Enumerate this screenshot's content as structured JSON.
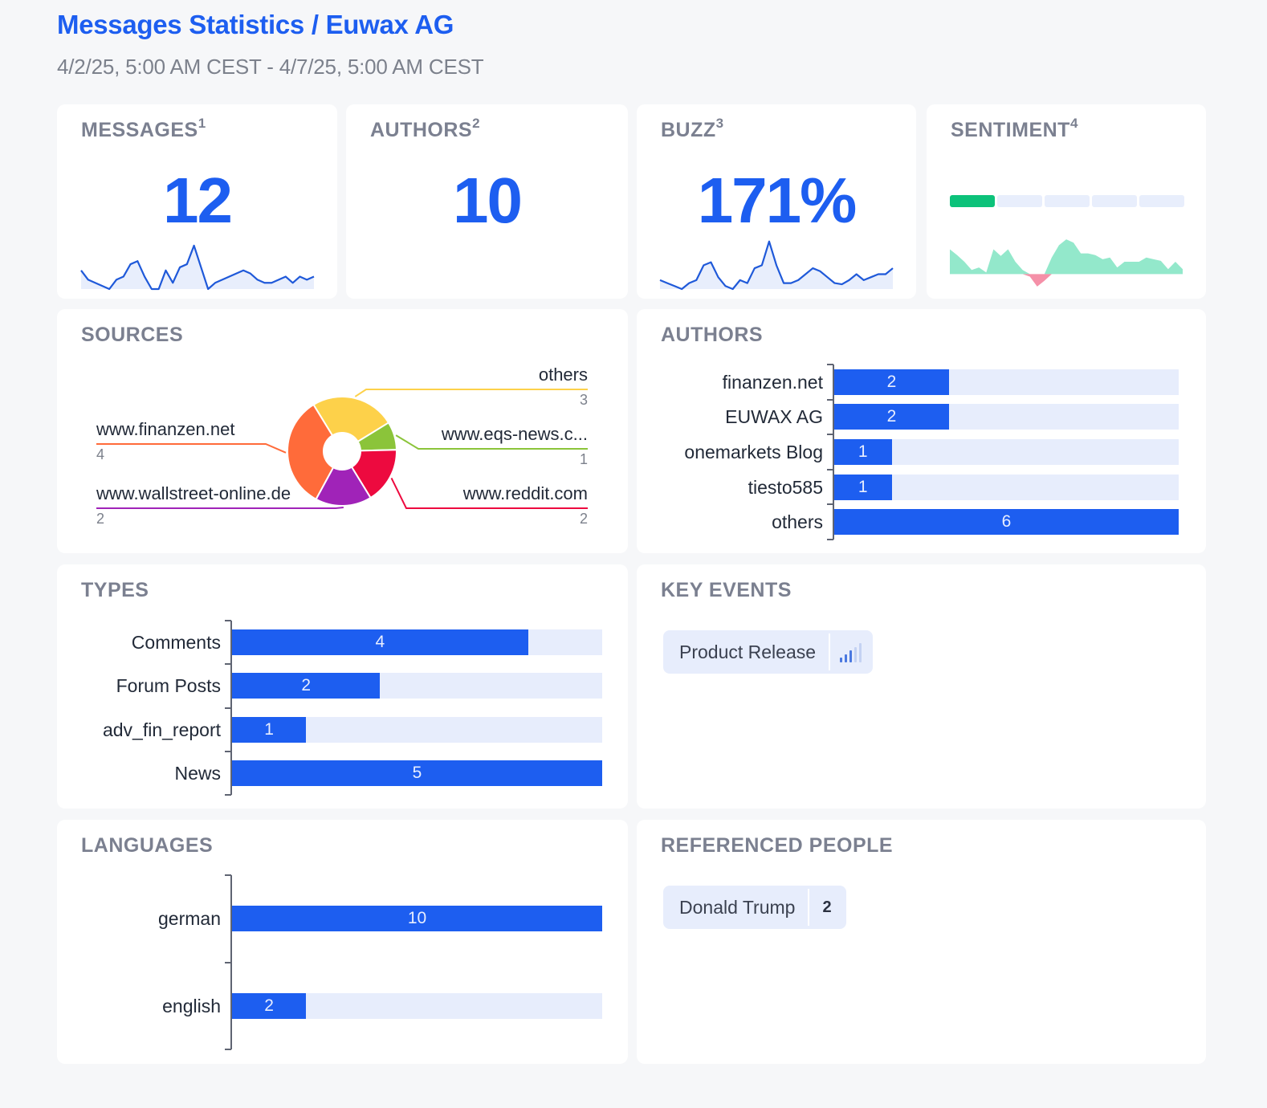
{
  "header": {
    "title": "Messages Statistics / Euwax AG",
    "date_range": "4/2/25, 5:00 AM CEST - 4/7/25, 5:00 AM CEST"
  },
  "kpis": {
    "messages": {
      "label": "MESSAGES",
      "footnote": "1",
      "value": "12"
    },
    "authors": {
      "label": "AUTHORS",
      "footnote": "2",
      "value": "10"
    },
    "buzz": {
      "label": "BUZZ",
      "footnote": "3",
      "value": "171%"
    },
    "sentiment": {
      "label": "SENTIMENT",
      "footnote": "4",
      "level": 1,
      "level_max": 5
    }
  },
  "colors": {
    "accent": "#1d5ef0",
    "track": "#e7edfc",
    "positive": "#0cc27a",
    "positive_area": "#93e8cb",
    "negative_area": "#f590a8"
  },
  "chart_data": [
    {
      "name": "messages-sparkline",
      "type": "area",
      "values": [
        3,
        1.5,
        1,
        0.5,
        0,
        1.5,
        2,
        4,
        4.5,
        2,
        0,
        0,
        3,
        1,
        3.5,
        4,
        7,
        3.5,
        0,
        1,
        1.5,
        2,
        2.5,
        3,
        2.5,
        1.5,
        1,
        1,
        1.5,
        2,
        1,
        2,
        1.5,
        2
      ],
      "ylim": [
        0,
        7.5
      ]
    },
    {
      "name": "buzz-sparkline",
      "type": "area",
      "values": [
        1.5,
        1,
        0.5,
        0,
        1,
        1.5,
        4,
        4.5,
        2,
        0.5,
        0,
        1.5,
        1,
        3.5,
        4,
        8,
        4,
        1,
        1,
        1.5,
        2.5,
        3.5,
        3,
        2,
        1,
        0.8,
        1.5,
        2.5,
        1.5,
        2,
        2.5,
        2.5,
        3.5
      ],
      "ylim": [
        0,
        8.5
      ]
    },
    {
      "name": "sentiment-sparkline",
      "type": "area",
      "values": [
        3,
        2.3,
        1.5,
        0.5,
        0.8,
        0.2,
        3,
        2.2,
        3,
        1.5,
        0.5,
        -0.3,
        -1.5,
        -0.8,
        2,
        3.5,
        4.2,
        3.8,
        2.5,
        2.5,
        2.3,
        1.8,
        2,
        0.8,
        1.5,
        1.5,
        1.5,
        2,
        1.8,
        1.6,
        0.6,
        1.5,
        0.6
      ],
      "ylim": [
        -1.8,
        4.5
      ]
    },
    {
      "name": "sources",
      "type": "pie",
      "title": "SOURCES",
      "slices": [
        {
          "label": "others",
          "value": 3,
          "color": "#fdd14a"
        },
        {
          "label": "www.eqs-news.c...",
          "value": 1,
          "color": "#8bc43a"
        },
        {
          "label": "www.reddit.com",
          "value": 2,
          "color": "#ed0a3f"
        },
        {
          "label": "www.wallstreet-online.de",
          "value": 2,
          "color": "#a023b8"
        },
        {
          "label": "www.finanzen.net",
          "value": 4,
          "color": "#ff6b3a"
        }
      ]
    },
    {
      "name": "authors",
      "type": "bar",
      "title": "AUTHORS",
      "categories": [
        "finanzen.net",
        "EUWAX AG",
        "onemarkets Blog",
        "tiesto585",
        "others"
      ],
      "values": [
        2,
        2,
        1,
        1,
        6
      ],
      "xlim": [
        0,
        6
      ]
    },
    {
      "name": "types",
      "type": "bar",
      "title": "TYPES",
      "categories": [
        "Comments",
        "Forum Posts",
        "adv_fin_report",
        "News"
      ],
      "values": [
        4,
        2,
        1,
        5
      ],
      "xlim": [
        0,
        5
      ]
    },
    {
      "name": "languages",
      "type": "bar",
      "title": "LANGUAGES",
      "categories": [
        "german",
        "english"
      ],
      "values": [
        10,
        2
      ],
      "xlim": [
        0,
        10
      ]
    }
  ],
  "sections": {
    "sources": "SOURCES",
    "authors": "AUTHORS",
    "types": "TYPES",
    "key_events": "KEY EVENTS",
    "languages": "LANGUAGES",
    "referenced_people": "REFERENCED PEOPLE"
  },
  "key_events": [
    {
      "label": "Product Release",
      "icon": "signal-strength-icon",
      "strength": 3,
      "strength_max": 5
    }
  ],
  "referenced_people": [
    {
      "name": "Donald Trump",
      "count": "2"
    }
  ]
}
